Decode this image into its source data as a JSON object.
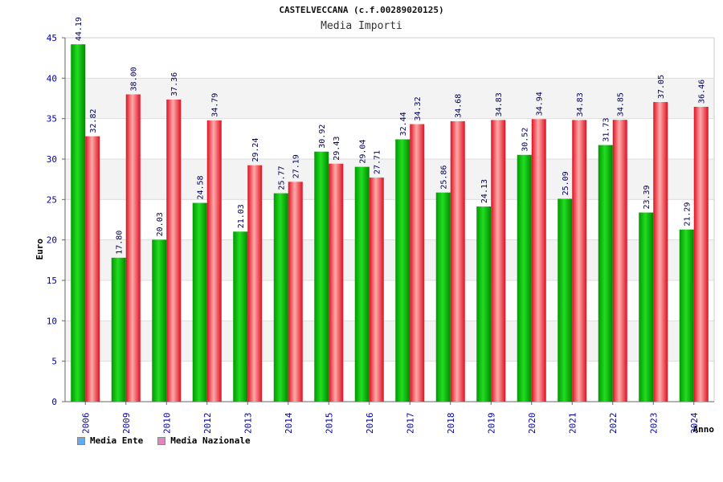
{
  "header": {
    "title": "CASTELVECCANA (c.f.00289020125)",
    "subtitle": "Media Importi"
  },
  "legend": {
    "ente_label": "Media Ente",
    "nazionale_label": "Media Nazionale",
    "ente_color": "#66aaee",
    "nazionale_color": "#dd88bb"
  },
  "chart_data": {
    "type": "bar",
    "title": "CASTELVECCANA (c.f.00289020125)",
    "subtitle": "Media Importi",
    "xlabel": "Anno",
    "ylabel": "Euro",
    "ylim": [
      0,
      45
    ],
    "yticks": [
      0,
      5,
      10,
      15,
      20,
      25,
      30,
      35,
      40,
      45
    ],
    "grid": true,
    "legend_position": "bottom-left",
    "categories": [
      "2006",
      "2009",
      "2010",
      "2012",
      "2013",
      "2014",
      "2015",
      "2016",
      "2017",
      "2018",
      "2019",
      "2020",
      "2021",
      "2022",
      "2023",
      "2024"
    ],
    "series": [
      {
        "name": "Media Ente",
        "color": "#11bb11",
        "values": [
          44.19,
          17.8,
          20.03,
          24.58,
          21.03,
          25.77,
          30.92,
          29.04,
          32.44,
          25.86,
          24.13,
          30.52,
          25.09,
          31.73,
          23.39,
          21.29
        ],
        "labels": [
          "44.19",
          "17.80",
          "20.03",
          "24.58",
          "21.03",
          "25.77",
          "30.92",
          "29.04",
          "32.44",
          "25.86",
          "24.13",
          "30.52",
          "25.09",
          "31.73",
          "23.39",
          "21.29"
        ]
      },
      {
        "name": "Media Nazionale",
        "color": "#ee2233",
        "values": [
          32.82,
          38.0,
          37.36,
          34.79,
          29.24,
          27.19,
          29.43,
          27.71,
          34.32,
          34.68,
          34.83,
          34.94,
          34.83,
          34.85,
          37.05,
          36.46
        ],
        "labels": [
          "32.82",
          "38.00",
          "37.36",
          "34.79",
          "29.24",
          "27.19",
          "29.43",
          "27.71",
          "34.32",
          "34.68",
          "34.83",
          "34.94",
          "34.83",
          "34.85",
          "37.05",
          "36.46"
        ]
      }
    ]
  }
}
